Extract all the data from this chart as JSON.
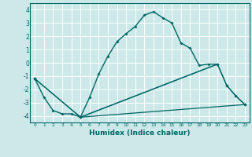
{
  "title": "",
  "xlabel": "Humidex (Indice chaleur)",
  "background_color": "#cce8e8",
  "grid_color": "#ffffff",
  "line_color": "#006666",
  "xlim": [
    -0.5,
    23.5
  ],
  "ylim": [
    -4.5,
    4.5
  ],
  "yticks": [
    -4,
    -3,
    -2,
    -1,
    0,
    1,
    2,
    3,
    4
  ],
  "xticks": [
    0,
    1,
    2,
    3,
    4,
    5,
    6,
    7,
    8,
    9,
    10,
    11,
    12,
    13,
    14,
    15,
    16,
    17,
    18,
    19,
    20,
    21,
    22,
    23
  ],
  "curve_main": {
    "x": [
      0,
      1,
      2,
      3,
      4,
      5,
      6,
      7,
      8,
      9,
      10,
      11,
      12,
      13,
      14,
      15,
      16,
      17,
      18,
      19,
      20
    ],
    "y": [
      -1.2,
      -2.6,
      -3.6,
      -3.85,
      -3.85,
      -4.1,
      -2.6,
      -0.85,
      0.5,
      1.6,
      2.2,
      2.75,
      3.6,
      3.85,
      3.4,
      3.0,
      1.5,
      1.1,
      -0.2,
      -0.1,
      -0.1
    ]
  },
  "curve_line1": {
    "x": [
      0,
      5,
      23
    ],
    "y": [
      -1.2,
      -4.1,
      -3.15
    ]
  },
  "curve_line2": {
    "x": [
      0,
      5,
      20,
      21,
      22,
      23
    ],
    "y": [
      -1.2,
      -4.1,
      -0.1,
      -1.7,
      -2.5,
      -3.15
    ]
  },
  "curve_line3": {
    "x": [
      5,
      20,
      21,
      22,
      23
    ],
    "y": [
      -4.1,
      -0.1,
      -1.7,
      -2.5,
      -3.15
    ]
  }
}
